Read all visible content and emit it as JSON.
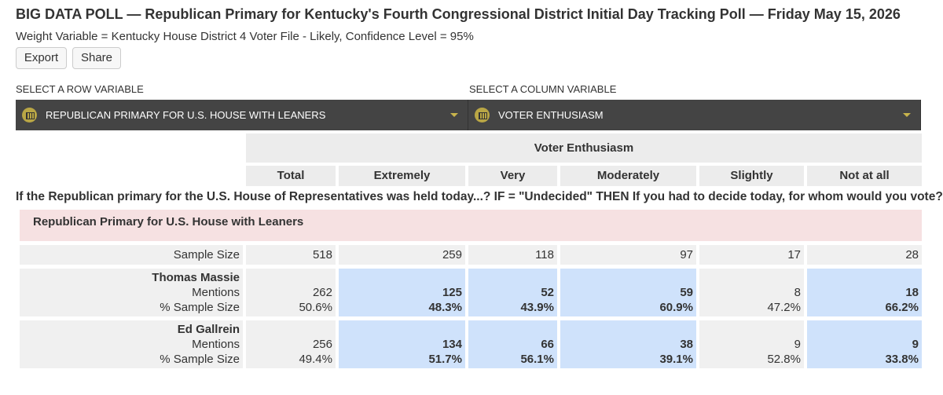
{
  "header": {
    "title": "BIG DATA POLL — Republican Primary for Kentucky's Fourth Congressional District Initial Day Tracking Poll — Friday May 15, 2026",
    "subtitle": "Weight Variable = Kentucky House District 4 Voter File - Likely, Confidence Level = 95%"
  },
  "buttons": [
    "Export",
    "Share"
  ],
  "selectors": {
    "row_label": "SELECT A ROW VARIABLE",
    "row_value": "REPUBLICAN PRIMARY FOR U.S. HOUSE WITH LEANERS",
    "column_label": "SELECT A COLUMN VARIABLE",
    "column_value": "VOTER ENTHUSIASM"
  },
  "table": {
    "group_header": "Voter Enthusiasm",
    "columns": [
      "Total",
      "Extremely",
      "Very",
      "Moderately",
      "Slightly",
      "Not at all"
    ],
    "question": "If the Republican primary for the U.S. House of Representatives was held today...? IF = \"Undecided\" THEN If you had to decide today, for whom would you vote?",
    "section": "Republican Primary for U.S. House with Leaners",
    "sample_size_label": "Sample Size",
    "sample_sizes": [
      518,
      259,
      118,
      97,
      17,
      28
    ],
    "rows": [
      {
        "name": "Thomas Massie",
        "mentions_label": "Mentions",
        "pct_label": "% Sample Size",
        "mentions": [
          262,
          125,
          52,
          59,
          8,
          18
        ],
        "pcts": [
          "50.6%",
          "48.3%",
          "43.9%",
          "60.9%",
          "47.2%",
          "66.2%"
        ],
        "highlighted": [
          false,
          true,
          true,
          true,
          false,
          true
        ]
      },
      {
        "name": "Ed Gallrein",
        "mentions_label": "Mentions",
        "pct_label": "% Sample Size",
        "mentions": [
          256,
          134,
          66,
          38,
          9,
          9
        ],
        "pcts": [
          "49.4%",
          "51.7%",
          "56.1%",
          "39.1%",
          "52.8%",
          "33.8%"
        ],
        "highlighted": [
          false,
          true,
          true,
          true,
          false,
          true
        ]
      }
    ]
  }
}
